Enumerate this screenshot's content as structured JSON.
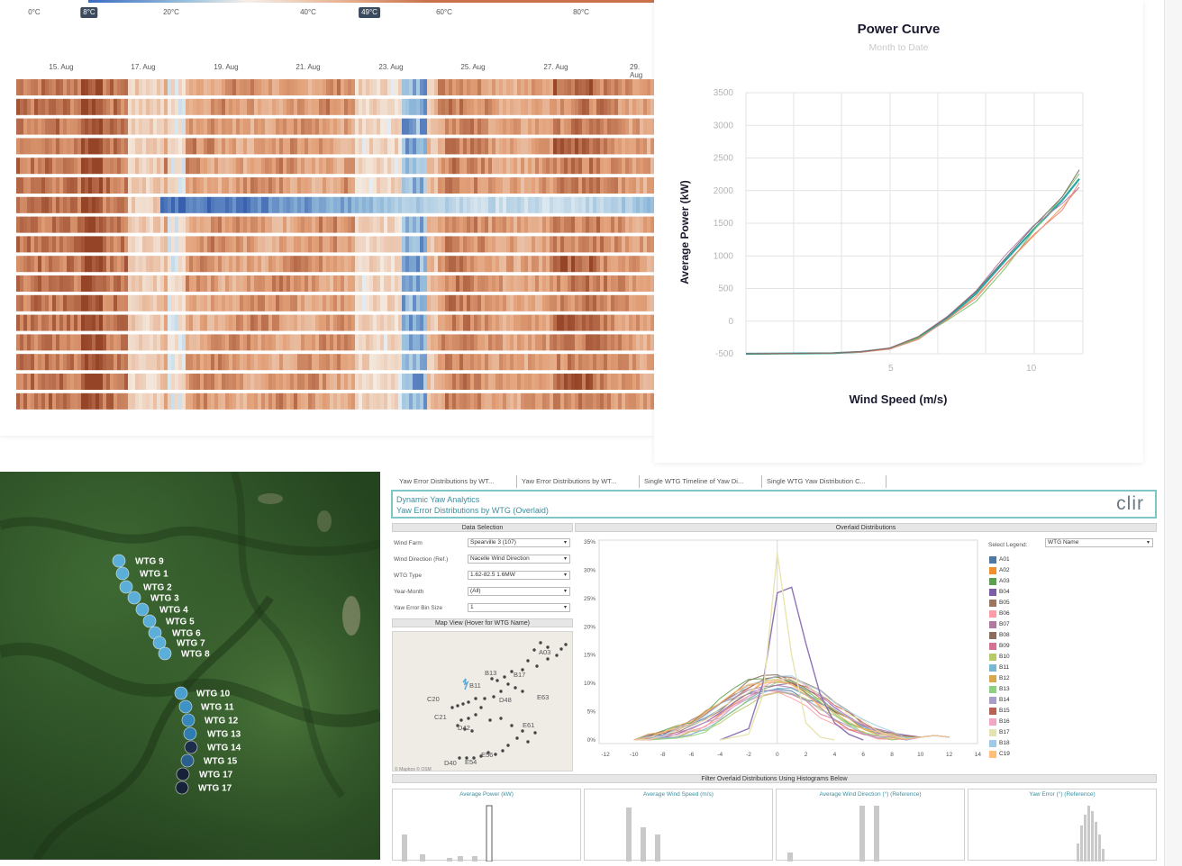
{
  "heatmap": {
    "scale_ticks": [
      "0°C",
      "20°C",
      "40°C",
      "60°C",
      "80°C"
    ],
    "scale_handles": [
      "8°C",
      "49°C"
    ],
    "dates": [
      "15. Aug",
      "17. Aug",
      "19. Aug",
      "21. Aug",
      "23. Aug",
      "25. Aug",
      "27. Aug",
      "29. Aug"
    ],
    "row_count": 17,
    "colors": {
      "warm": "#c8714a",
      "cool": "#3a6cc0",
      "neutral": "#f4efe9"
    }
  },
  "power_curve": {
    "title": "Power Curve",
    "subtitle": "Month to Date",
    "xlabel": "Wind Speed (m/s)",
    "ylabel": "Average Power (kW)"
  },
  "chart_data": {
    "type": "line",
    "title": "Power Curve",
    "subtitle": "Month to Date",
    "xlabel": "Wind Speed (m/s)",
    "ylabel": "Average Power (kW)",
    "xlim": [
      0,
      12
    ],
    "ylim": [
      -500,
      3500
    ],
    "x_ticks": [
      "5",
      "10"
    ],
    "y_ticks": [
      "3500",
      "3000",
      "2500",
      "2000",
      "1500",
      "1000",
      "500",
      "0",
      "-500"
    ],
    "grid": true,
    "x": [
      0,
      3,
      4,
      5,
      6,
      7,
      8,
      9,
      10,
      11,
      11.6
    ],
    "series": [
      {
        "color": "#2aa6a6",
        "values": [
          -500,
          -490,
          -470,
          -420,
          -250,
          40,
          420,
          920,
          1400,
          1850,
          2180
        ]
      },
      {
        "color": "#f3a35c",
        "values": [
          -500,
          -490,
          -475,
          -430,
          -270,
          20,
          380,
          850,
          1300,
          1750,
          2050
        ]
      },
      {
        "color": "#7cc36b",
        "values": [
          -500,
          -490,
          -470,
          -425,
          -260,
          10,
          300,
          800,
          1380,
          1900,
          2260
        ]
      },
      {
        "color": "#b97fb2",
        "values": [
          -500,
          -490,
          -465,
          -410,
          -235,
          70,
          460,
          1000,
          1460,
          1800,
          2050
        ]
      },
      {
        "color": "#e8877f",
        "values": [
          -500,
          -490,
          -472,
          -428,
          -280,
          30,
          350,
          860,
          1320,
          1700,
          2120
        ]
      },
      {
        "color": "#7b6e64",
        "values": [
          -500,
          -490,
          -468,
          -415,
          -240,
          60,
          450,
          950,
          1450,
          1900,
          2320
        ]
      }
    ]
  },
  "map": {
    "turbines": [
      "WTG 9",
      "WTG 1",
      "WTG 2",
      "WTG 3",
      "WTG 4",
      "WTG 5",
      "WTG 6",
      "WTG 7",
      "WTG 8",
      "WTG 10",
      "WTG 11",
      "WTG 12",
      "WTG 13",
      "WTG 14",
      "WTG 15",
      "WTG 17",
      "WTG 17"
    ],
    "marker_colors": [
      "#5aaed8",
      "#5aaed8",
      "#5aaed8",
      "#5aaed8",
      "#5aaed8",
      "#5aaed8",
      "#5aaed8",
      "#5aaed8",
      "#5aaed8",
      "#4a9fcf",
      "#3f92c4",
      "#3787bb",
      "#2f7cb1",
      "#1c2e4a",
      "#2a5f8e",
      "#152238",
      "#152238"
    ]
  },
  "dashboard": {
    "tabs": [
      "Yaw Error Distributions by WT...",
      "Yaw Error Distributions by WT...",
      "Single WTG Timeline of Yaw Di...",
      "Single WTG Yaw Distribution C..."
    ],
    "header_line1": "Dynamic Yaw Analytics",
    "header_line2": "Yaw Error Distributions by WTG (Overlaid)",
    "logo": "clir",
    "data_selection_title": "Data Selection",
    "filters": [
      {
        "label": "Wind Farm",
        "value": "Spearville 3 (107)"
      },
      {
        "label": "Wind Direction (Ref.)",
        "value": "Nacelle Wind Direction"
      },
      {
        "label": "WTG Type",
        "value": "1.62-82.5 1.6MW"
      },
      {
        "label": "Year-Month",
        "value": "(All)"
      },
      {
        "label": "Yaw Error Bin Size",
        "value": "1"
      }
    ],
    "map_view_title": "Map View (Hover for WTG Name)",
    "minimap_labels": [
      "A03",
      "B13",
      "B17",
      "B11",
      "C20",
      "D48",
      "E63",
      "C21",
      "D42",
      "E61",
      "D40",
      "E54",
      "E56"
    ],
    "minimap_attribution": "© Mapbox © OSM",
    "overlaid_title": "Overlaid Distributions",
    "legend_title": "Select Legend:",
    "legend_select": "WTG Name",
    "legend": [
      {
        "name": "A01",
        "color": "#4e79a7"
      },
      {
        "name": "A02",
        "color": "#f28e2b"
      },
      {
        "name": "A03",
        "color": "#59a14f"
      },
      {
        "name": "B04",
        "color": "#7b5ea7"
      },
      {
        "name": "B05",
        "color": "#9c755f"
      },
      {
        "name": "B06",
        "color": "#ff9da7"
      },
      {
        "name": "B07",
        "color": "#b07aa1"
      },
      {
        "name": "B08",
        "color": "#8c6d5c"
      },
      {
        "name": "B09",
        "color": "#d37295"
      },
      {
        "name": "B10",
        "color": "#b6c96b"
      },
      {
        "name": "B11",
        "color": "#76b7d2"
      },
      {
        "name": "B12",
        "color": "#d8a84a"
      },
      {
        "name": "B13",
        "color": "#8cd17d"
      },
      {
        "name": "B14",
        "color": "#a89ec9"
      },
      {
        "name": "B15",
        "color": "#b66353"
      },
      {
        "name": "B16",
        "color": "#f1a7c3"
      },
      {
        "name": "B17",
        "color": "#e6e3b3"
      },
      {
        "name": "B18",
        "color": "#a0cbe8"
      },
      {
        "name": "C19",
        "color": "#ffbe7d"
      }
    ],
    "dist_y_ticks": [
      "35%",
      "30%",
      "25%",
      "20%",
      "15%",
      "10%",
      "5%",
      "0%"
    ],
    "dist_x_ticks": [
      "-12",
      "-10",
      "-8",
      "-6",
      "-4",
      "-2",
      "0",
      "2",
      "4",
      "6",
      "8",
      "10",
      "12",
      "14"
    ],
    "filter_hist_title": "Filter Overlaid Distributions Using Histograms Below",
    "histograms": [
      "Average Power (kW)",
      "Average Wind Speed (m/s)",
      "Average Wind Direction (°) (Reference)",
      "Yaw Error (°) (Reference)"
    ]
  }
}
